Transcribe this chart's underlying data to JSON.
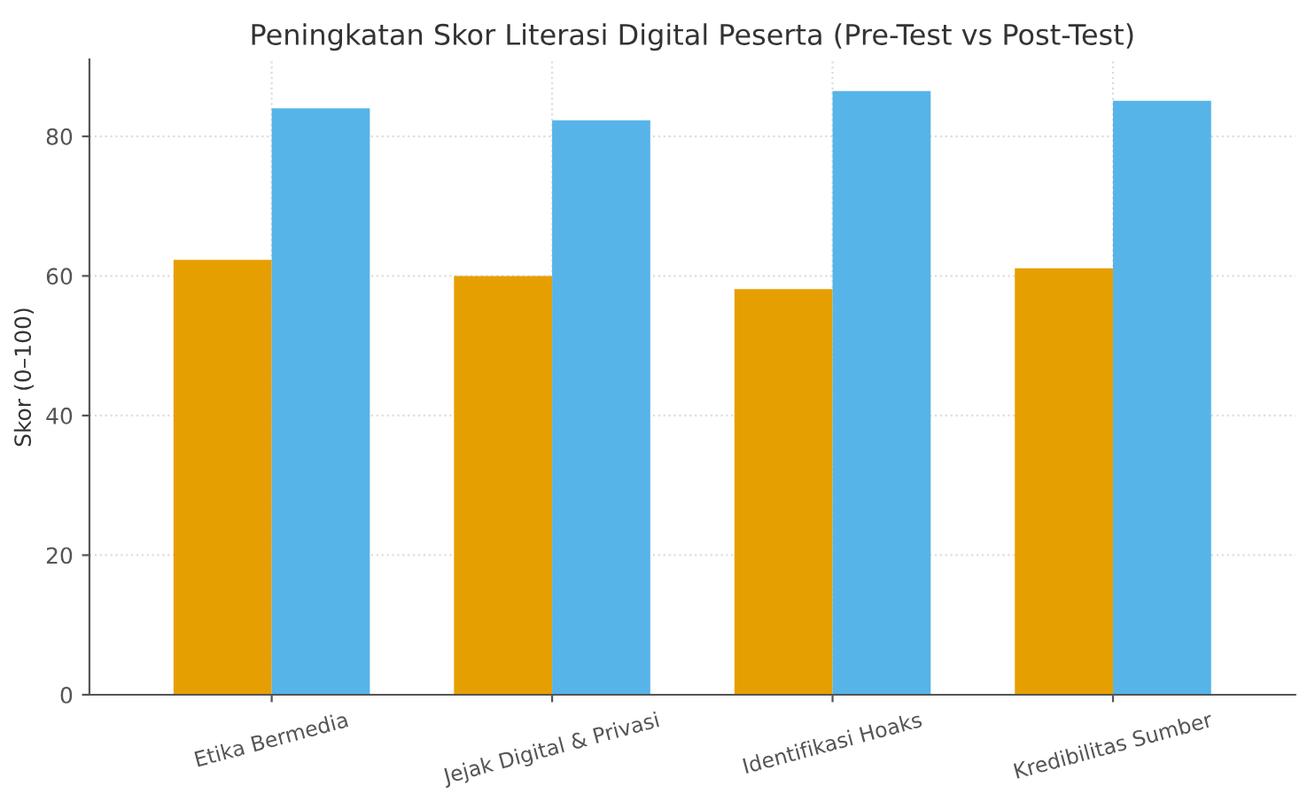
{
  "chart_data": {
    "type": "bar",
    "title": "Peningkatan Skor Literasi Digital Peserta (Pre-Test vs Post-Test)",
    "ylabel": "Skor (0–100)",
    "categories": [
      "Etika Bermedia",
      "Jejak Digital & Privasi",
      "Identifikasi Hoaks",
      "Kredibilitas Sumber"
    ],
    "series": [
      {
        "color": "#e69f00",
        "values": [
          62.3,
          60,
          58.1,
          61.1
        ]
      },
      {
        "color": "#56b4e9",
        "values": [
          84,
          82.3,
          86.5,
          85.1
        ]
      }
    ],
    "ylim": [
      0,
      91
    ],
    "yticks": [
      0,
      20,
      40,
      60,
      80
    ],
    "grid": true
  }
}
